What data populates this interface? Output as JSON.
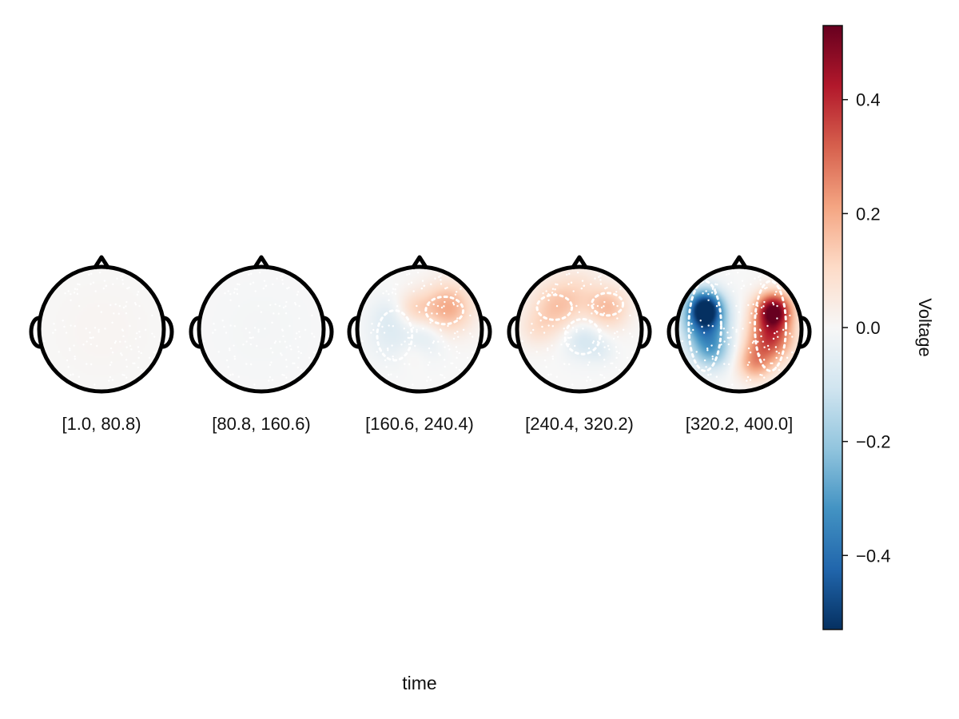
{
  "chart_data": {
    "type": "heatmap",
    "title": "",
    "xlabel": "time",
    "colorbar": {
      "label": "Voltage",
      "range": [
        -0.53,
        0.53
      ],
      "ticks": [
        -0.4,
        -0.2,
        0.0,
        0.2,
        0.4
      ],
      "tick_labels": [
        "−0.4",
        "−0.2",
        "0.0",
        "0.2",
        "0.4"
      ],
      "colormap": "RdBu_r",
      "stops": [
        "#053061",
        "#2166ac",
        "#4393c3",
        "#92c5de",
        "#d1e5f0",
        "#f7f7f7",
        "#fddbc7",
        "#f4a582",
        "#d6604d",
        "#b2182b",
        "#67001f"
      ]
    },
    "panels": [
      {
        "label": "[1.0, 80.8)",
        "blobs": [
          [
            0.0,
            0.0,
            0.6,
            0.012
          ]
        ],
        "contours": []
      },
      {
        "label": "[80.8, 160.6)",
        "blobs": [
          [
            0.0,
            0.0,
            0.6,
            -0.01
          ]
        ],
        "contours": []
      },
      {
        "label": "[160.6, 240.4)",
        "blobs": [
          [
            0.45,
            0.35,
            0.28,
            0.2
          ],
          [
            -0.1,
            0.32,
            0.2,
            0.1
          ],
          [
            -0.4,
            -0.1,
            0.3,
            -0.06
          ],
          [
            0.1,
            -0.15,
            0.22,
            -0.06
          ],
          [
            -0.1,
            -0.35,
            0.18,
            0.04
          ],
          [
            -0.5,
            0.25,
            0.2,
            -0.04
          ]
        ],
        "contours": [
          [
            -0.4,
            -0.1,
            0.28,
            0.4
          ],
          [
            0.4,
            0.3,
            0.3,
            0.22
          ]
        ]
      },
      {
        "label": "[240.4, 320.2)",
        "blobs": [
          [
            -0.35,
            0.35,
            0.3,
            0.15
          ],
          [
            0.45,
            0.35,
            0.24,
            0.16
          ],
          [
            0.05,
            -0.15,
            0.22,
            -0.1
          ],
          [
            0.0,
            0.7,
            0.25,
            0.05
          ],
          [
            -0.7,
            0.0,
            0.2,
            0.06
          ],
          [
            0.35,
            -0.35,
            0.15,
            -0.04
          ]
        ],
        "contours": [
          [
            0.05,
            -0.12,
            0.28,
            0.28
          ],
          [
            -0.4,
            0.35,
            0.28,
            0.2
          ],
          [
            0.45,
            0.4,
            0.25,
            0.18
          ]
        ]
      },
      {
        "label": "[320.2, 400.0]",
        "blobs": [
          [
            -0.55,
            0.35,
            0.2,
            -0.5
          ],
          [
            -0.55,
            0.05,
            0.25,
            -0.3
          ],
          [
            -0.45,
            -0.35,
            0.22,
            -0.22
          ],
          [
            0.55,
            0.3,
            0.2,
            0.52
          ],
          [
            0.5,
            -0.15,
            0.25,
            0.35
          ],
          [
            0.25,
            -0.55,
            0.2,
            0.2
          ],
          [
            0.0,
            0.0,
            0.2,
            0.0
          ]
        ],
        "contours": [
          [
            -0.55,
            0.05,
            0.26,
            0.72
          ],
          [
            0.5,
            0.05,
            0.25,
            0.72
          ]
        ]
      }
    ],
    "electrodes_per_panel": 128
  }
}
